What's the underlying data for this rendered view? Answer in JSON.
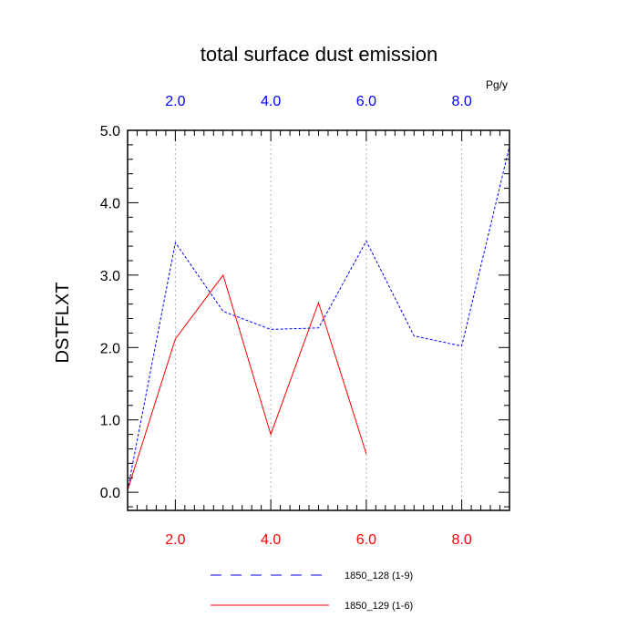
{
  "chart_data": {
    "type": "line",
    "title": "total surface dust emission",
    "ylabel": "DSTFLXT",
    "units_label": "Pg/y",
    "xlim": [
      1,
      9
    ],
    "ylim": [
      -0.25,
      5.0
    ],
    "y_ticks": [
      "0.0",
      "1.0",
      "2.0",
      "3.0",
      "4.0",
      "5.0"
    ],
    "y_tick_values": [
      0,
      1,
      2,
      3,
      4,
      5
    ],
    "x_ticks_bottom": [
      "2.0",
      "4.0",
      "6.0",
      "8.0"
    ],
    "x_ticks_top": [
      "2.0",
      "4.0",
      "6.0",
      "8.0"
    ],
    "x_tick_values": [
      2,
      4,
      6,
      8
    ],
    "grid": "vertical dotted at major x ticks",
    "legend_position": "bottom",
    "colors": {
      "top_axis": "#0000ff",
      "bottom_axis": "#ff0000",
      "grid": "#b0b0b0"
    },
    "series": [
      {
        "name": "1850_128 (1-9)",
        "color": "#0000ff",
        "dash": "dashed",
        "x": [
          1,
          2,
          3,
          4,
          5,
          6,
          7,
          8,
          9
        ],
        "y": [
          0.03,
          3.45,
          2.5,
          2.25,
          2.27,
          3.47,
          2.16,
          2.02,
          4.78
        ]
      },
      {
        "name": "1850_129 (1-6)",
        "color": "#ff0000",
        "dash": "solid",
        "x": [
          1,
          2,
          3,
          4,
          5,
          6
        ],
        "y": [
          0.03,
          2.12,
          3.0,
          0.8,
          2.62,
          0.53
        ]
      }
    ]
  }
}
